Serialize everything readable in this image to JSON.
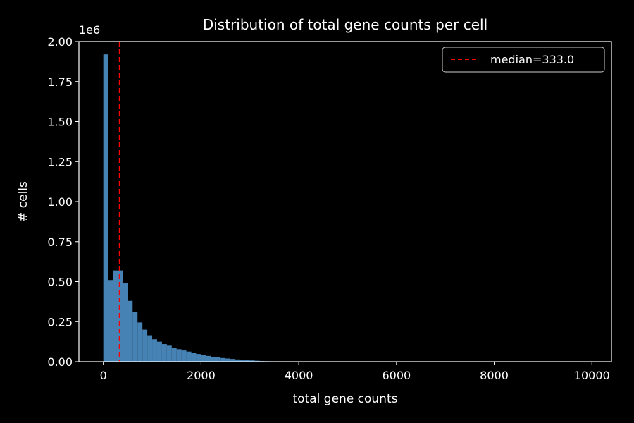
{
  "chart_data": {
    "type": "bar",
    "title": "Distribution of total gene counts per cell",
    "xlabel": "total gene counts",
    "ylabel": "# cells",
    "y_scale_note": "1e6",
    "xlim": [
      -500,
      10400
    ],
    "ylim": [
      0,
      2.0
    ],
    "x_ticks": [
      0,
      2000,
      4000,
      6000,
      8000,
      10000
    ],
    "x_tick_labels": [
      "0",
      "2000",
      "4000",
      "6000",
      "8000",
      "10000"
    ],
    "y_ticks": [
      0,
      0.25,
      0.5,
      0.75,
      1.0,
      1.25,
      1.5,
      1.75,
      2.0
    ],
    "y_tick_labels": [
      "0.00",
      "0.25",
      "0.50",
      "0.75",
      "1.00",
      "1.25",
      "1.50",
      "1.75",
      "2.00"
    ],
    "grid": false,
    "bin_width": 100,
    "bins": [
      {
        "start": 0,
        "count": 1.92
      },
      {
        "start": 100,
        "count": 0.51
      },
      {
        "start": 200,
        "count": 0.57
      },
      {
        "start": 300,
        "count": 0.57
      },
      {
        "start": 400,
        "count": 0.49
      },
      {
        "start": 500,
        "count": 0.38
      },
      {
        "start": 600,
        "count": 0.31
      },
      {
        "start": 700,
        "count": 0.245
      },
      {
        "start": 800,
        "count": 0.2
      },
      {
        "start": 900,
        "count": 0.165
      },
      {
        "start": 1000,
        "count": 0.14
      },
      {
        "start": 1100,
        "count": 0.125
      },
      {
        "start": 1200,
        "count": 0.11
      },
      {
        "start": 1300,
        "count": 0.1
      },
      {
        "start": 1400,
        "count": 0.088
      },
      {
        "start": 1500,
        "count": 0.078
      },
      {
        "start": 1600,
        "count": 0.07
      },
      {
        "start": 1700,
        "count": 0.063
      },
      {
        "start": 1800,
        "count": 0.055
      },
      {
        "start": 1900,
        "count": 0.048
      },
      {
        "start": 2000,
        "count": 0.042
      },
      {
        "start": 2100,
        "count": 0.036
      },
      {
        "start": 2200,
        "count": 0.031
      },
      {
        "start": 2300,
        "count": 0.027
      },
      {
        "start": 2400,
        "count": 0.023
      },
      {
        "start": 2500,
        "count": 0.02
      },
      {
        "start": 2600,
        "count": 0.017
      },
      {
        "start": 2700,
        "count": 0.014
      },
      {
        "start": 2800,
        "count": 0.012
      },
      {
        "start": 2900,
        "count": 0.01
      },
      {
        "start": 3000,
        "count": 0.008
      },
      {
        "start": 3100,
        "count": 0.006
      },
      {
        "start": 3200,
        "count": 0.004
      },
      {
        "start": 3300,
        "count": 0.003
      },
      {
        "start": 3400,
        "count": 0.002
      },
      {
        "start": 3500,
        "count": 0.0015
      },
      {
        "start": 3600,
        "count": 0.001
      },
      {
        "start": 3700,
        "count": 0.0008
      },
      {
        "start": 3800,
        "count": 0.0006
      },
      {
        "start": 3900,
        "count": 0.0004
      }
    ],
    "bar_color": "#4682b4",
    "median": {
      "value": 333.0,
      "label": "median=333.0",
      "color": "#ff0000"
    },
    "legend_position": "top-right"
  }
}
